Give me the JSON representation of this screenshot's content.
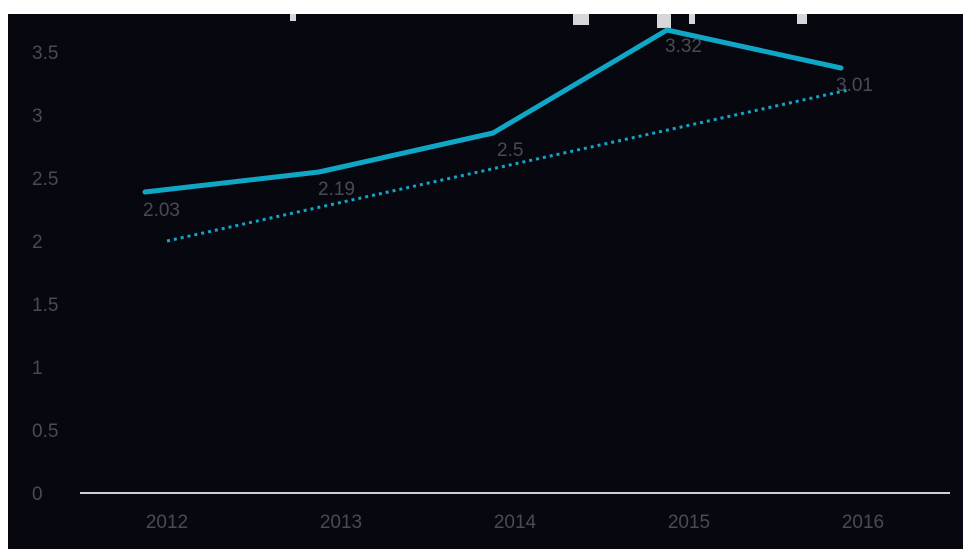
{
  "chart_data": {
    "type": "line",
    "title": "",
    "xlabel": "",
    "ylabel": "",
    "categories": [
      "2012",
      "2013",
      "2014",
      "2015",
      "2016"
    ],
    "series": [
      {
        "values": [
          2.03,
          2.19,
          2.5,
          3.32,
          3.01
        ],
        "data_labels": [
          "2.03",
          "2.19",
          "2.5",
          "3.32",
          "3.01"
        ],
        "color": "#10a7c6",
        "style": "solid"
      }
    ],
    "trendline": {
      "type": "linear",
      "color": "#10a7c6",
      "style": "dotted",
      "start": 2.0,
      "end": 3.2
    },
    "ylim": [
      0,
      3.5
    ],
    "yticks": [
      "0",
      "0.5",
      "1",
      "1.5",
      "2",
      "2.5",
      "3",
      "3.5"
    ],
    "grid": false,
    "legend": "none",
    "colors": {
      "background": "#07070f",
      "axis": "#d0d0d4",
      "tick_text": "#4a4a52",
      "series": "#10a7c6"
    }
  }
}
